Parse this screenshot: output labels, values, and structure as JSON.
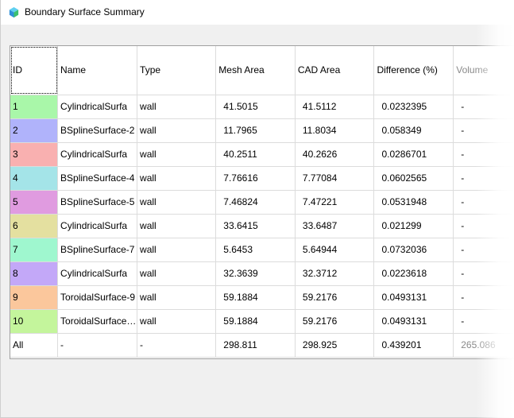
{
  "window": {
    "title": "Boundary Surface Summary"
  },
  "table": {
    "columns": [
      "ID",
      "Name",
      "Type",
      "Mesh Area",
      "CAD Area",
      "Difference (%)",
      "Volume"
    ],
    "rows": [
      {
        "id": "1",
        "name": "CylindricalSurfa",
        "type": "wall",
        "mesh_area": "41.5015",
        "cad_area": "41.5112",
        "difference": "0.0232395",
        "volume": "-",
        "color": "#a9f7a9"
      },
      {
        "id": "2",
        "name": "BSplineSurface-2",
        "type": "wall",
        "mesh_area": "11.7965",
        "cad_area": "11.8034",
        "difference": "0.058349",
        "volume": "-",
        "color": "#b0b3fb"
      },
      {
        "id": "3",
        "name": "CylindricalSurfa",
        "type": "wall",
        "mesh_area": "40.2511",
        "cad_area": "40.2626",
        "difference": "0.0286701",
        "volume": "-",
        "color": "#f9b0b0"
      },
      {
        "id": "4",
        "name": "BSplineSurface-4",
        "type": "wall",
        "mesh_area": "7.76616",
        "cad_area": "7.77084",
        "difference": "0.0602565",
        "volume": "-",
        "color": "#a4e4e8"
      },
      {
        "id": "5",
        "name": "BSplineSurface-5",
        "type": "wall",
        "mesh_area": "7.46824",
        "cad_area": "7.47221",
        "difference": "0.0531948",
        "volume": "-",
        "color": "#e09be0"
      },
      {
        "id": "6",
        "name": "CylindricalSurfa",
        "type": "wall",
        "mesh_area": "33.6415",
        "cad_area": "33.6487",
        "difference": "0.021299",
        "volume": "-",
        "color": "#e4e0a0"
      },
      {
        "id": "7",
        "name": "BSplineSurface-7",
        "type": "wall",
        "mesh_area": "5.6453",
        "cad_area": "5.64944",
        "difference": "0.0732036",
        "volume": "-",
        "color": "#9ff7cf"
      },
      {
        "id": "8",
        "name": "CylindricalSurfa",
        "type": "wall",
        "mesh_area": "32.3639",
        "cad_area": "32.3712",
        "difference": "0.0223618",
        "volume": "-",
        "color": "#c3a8f8"
      },
      {
        "id": "9",
        "name": "ToroidalSurface-9",
        "type": "wall",
        "mesh_area": "59.1884",
        "cad_area": "59.2176",
        "difference": "0.0493131",
        "volume": "-",
        "color": "#fbc79c"
      },
      {
        "id": "10",
        "name": "ToroidalSurface…",
        "type": "wall",
        "mesh_area": "59.1884",
        "cad_area": "59.2176",
        "difference": "0.0493131",
        "volume": "-",
        "color": "#c4f59c"
      }
    ],
    "total": {
      "id": "All",
      "name": "-",
      "type": "-",
      "mesh_area": "298.811",
      "cad_area": "298.925",
      "difference": "0.439201",
      "volume": "265.086"
    }
  }
}
